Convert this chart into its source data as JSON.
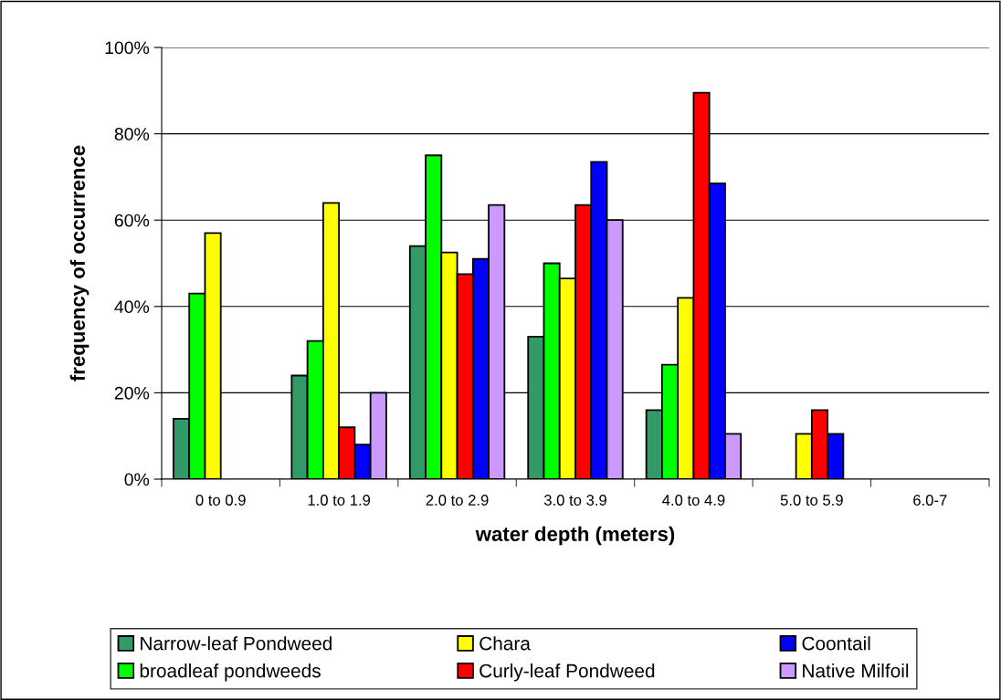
{
  "chart_data": {
    "type": "bar",
    "xlabel": "water depth (meters)",
    "ylabel": "frequency of occurrence",
    "categories": [
      "0 to 0.9",
      "1.0 to 1.9",
      "2.0 to 2.9",
      "3.0 to 3.9",
      "4.0 to 4.9",
      "5.0 to 5.9",
      "6.0-7"
    ],
    "series": [
      {
        "name": "Narrow-leaf Pondweed",
        "color": "#339966",
        "values": [
          14,
          24,
          54,
          33,
          16,
          null,
          null
        ]
      },
      {
        "name": "broadleaf pondweeds",
        "color": "#00ff00",
        "values": [
          43,
          32,
          75,
          50,
          26.5,
          null,
          null
        ]
      },
      {
        "name": "Chara",
        "color": "#ffff00",
        "values": [
          57,
          64,
          52.5,
          46.5,
          42,
          10.5,
          null
        ]
      },
      {
        "name": "Curly-leaf Pondweed",
        "color": "#ff0000",
        "values": [
          null,
          12,
          47.5,
          63.5,
          89.5,
          16,
          null
        ]
      },
      {
        "name": "Coontail",
        "color": "#0000ff",
        "values": [
          null,
          8,
          51,
          73.5,
          68.5,
          10.5,
          null
        ]
      },
      {
        "name": "Native Milfoil",
        "color": "#cc99ff",
        "values": [
          null,
          20,
          63.5,
          60,
          10.5,
          null,
          null
        ]
      }
    ],
    "ylim": [
      0,
      100
    ],
    "yticks": [
      {
        "value": 0,
        "label": "0%"
      },
      {
        "value": 20,
        "label": "20%"
      },
      {
        "value": 40,
        "label": "40%"
      },
      {
        "value": 60,
        "label": "60%"
      },
      {
        "value": 80,
        "label": "80%"
      },
      {
        "value": 100,
        "label": "100%"
      }
    ],
    "grid": "y",
    "legend": "bottom"
  }
}
